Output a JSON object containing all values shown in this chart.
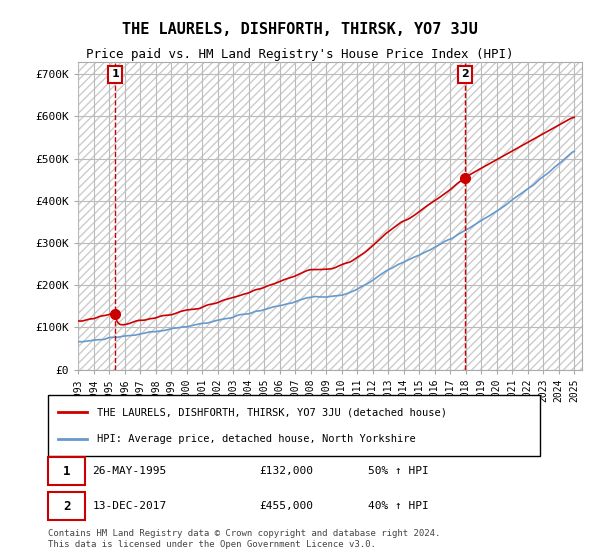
{
  "title": "THE LAURELS, DISHFORTH, THIRSK, YO7 3JU",
  "subtitle": "Price paid vs. HM Land Registry's House Price Index (HPI)",
  "ylabel_ticks": [
    "£0",
    "£100K",
    "£200K",
    "£300K",
    "£400K",
    "£500K",
    "£600K",
    "£700K"
  ],
  "ytick_values": [
    0,
    100000,
    200000,
    300000,
    400000,
    500000,
    600000,
    700000
  ],
  "ylim": [
    0,
    730000
  ],
  "xlim_start": 1993.0,
  "xlim_end": 2025.5,
  "sale1_x": 1995.4,
  "sale1_y": 132000,
  "sale1_label": "1",
  "sale2_x": 2017.95,
  "sale2_y": 455000,
  "sale2_label": "2",
  "vline1_x": 1995.4,
  "vline2_x": 2017.95,
  "legend_line1": "THE LAURELS, DISHFORTH, THIRSK, YO7 3JU (detached house)",
  "legend_line2": "HPI: Average price, detached house, North Yorkshire",
  "table_row1": "1    26-MAY-1995         £132,000        50% ↑ HPI",
  "table_row2": "2    13-DEC-2017         £455,000        40% ↑ HPI",
  "footer": "Contains HM Land Registry data © Crown copyright and database right 2024.\nThis data is licensed under the Open Government Licence v3.0.",
  "hpi_color": "#6699cc",
  "sale_color": "#cc0000",
  "vline_color": "#cc0000",
  "background_hatch_color": "#dddddd",
  "title_fontsize": 11,
  "subtitle_fontsize": 9,
  "grid_color": "#bbbbbb"
}
